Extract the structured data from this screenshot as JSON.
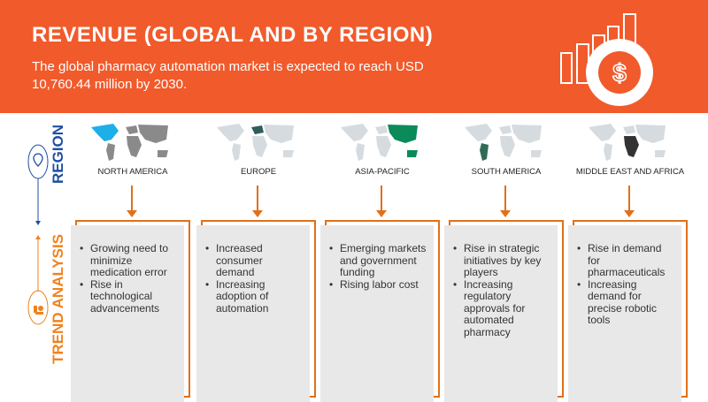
{
  "header": {
    "title": "REVENUE (GLOBAL AND BY REGION)",
    "subtitle": "The global pharmacy automation market is expected to reach USD 10,760.44 million by 2030.",
    "icon": "revenue-chart-dollar-icon",
    "background": "#f15a2b"
  },
  "side": {
    "region_label": "REGION",
    "trend_label": "TREND ANALYSIS",
    "region_color": "#1f4fa3",
    "trend_color": "#f0821e"
  },
  "regions": [
    {
      "name": "NORTH AMERICA",
      "highlight": "#1eaee8",
      "trends": [
        "Growing need to minimize medication error",
        "Rise in technological advancements"
      ]
    },
    {
      "name": "EUROPE",
      "highlight": "#2f5d5a",
      "trends": [
        "Increased consumer demand",
        "Increasing adoption of automation"
      ]
    },
    {
      "name": "ASIA-PACIFIC",
      "highlight": "#0b8a5a",
      "trends": [
        "Emerging markets and government funding",
        "Rising labor cost"
      ]
    },
    {
      "name": "SOUTH AMERICA",
      "highlight": "#2f6b55",
      "trends": [
        "Rise in strategic initiatives by key players",
        "Increasing regulatory approvals for automated pharmacy"
      ]
    },
    {
      "name": "MIDDLE EAST AND AFRICA",
      "highlight": "#333333",
      "trends": [
        "Rise in demand for pharmaceuticals",
        "Increasing demand for precise robotic tools"
      ]
    }
  ]
}
